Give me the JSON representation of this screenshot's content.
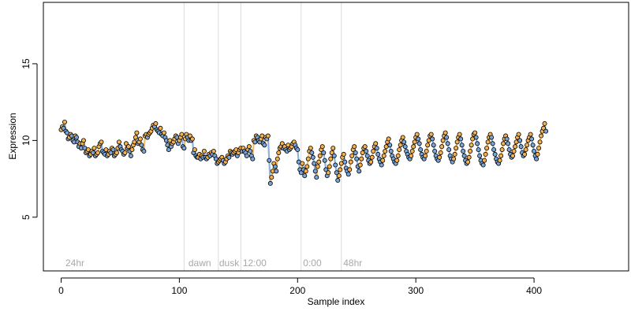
{
  "chart_data": {
    "type": "scatter",
    "xlabel": "Sample index",
    "ylabel": "Expression",
    "xlim": [
      -15,
      480
    ],
    "ylim": [
      1.5,
      19
    ],
    "x_ticks": [
      0,
      100,
      200,
      300,
      400
    ],
    "y_ticks": [
      5,
      10,
      15
    ],
    "grid": false,
    "colors": {
      "light": "#f5b14e",
      "dark": "#7aa4d6",
      "point_outline": "#000000",
      "divider": "#dcdcdc",
      "phase_label": "#a8a8a8"
    },
    "phase_markers": [
      {
        "x": 104,
        "label": ""
      },
      {
        "x": 133,
        "label": ""
      },
      {
        "x": 152,
        "label": ""
      },
      {
        "x": 203,
        "label": ""
      },
      {
        "x": 237,
        "label": ""
      }
    ],
    "phase_labels": [
      {
        "x": 3,
        "label": "24hr"
      },
      {
        "x": 107,
        "label": "dawn"
      },
      {
        "x": 133,
        "label": "dusk"
      },
      {
        "x": 153,
        "label": "12:00"
      },
      {
        "x": 204,
        "label": "0:00"
      },
      {
        "x": 238,
        "label": "48hr"
      }
    ],
    "series_legend": "none",
    "points_y": [
      10.7,
      10.9,
      10.8,
      11.2,
      10.6,
      10.5,
      10.1,
      10.2,
      10.4,
      10.3,
      10.0,
      9.9,
      10.3,
      10.2,
      9.9,
      9.6,
      9.8,
      9.5,
      9.8,
      10.0,
      9.5,
      9.2,
      9.3,
      9.4,
      9.0,
      9.1,
      9.3,
      9.2,
      9.5,
      9.0,
      9.1,
      9.2,
      9.6,
      9.8,
      9.9,
      9.3,
      9.2,
      9.1,
      9.4,
      9.0,
      9.1,
      9.3,
      9.2,
      9.5,
      9.4,
      9.0,
      9.1,
      9.2,
      9.5,
      9.9,
      9.6,
      9.4,
      9.3,
      9.1,
      9.2,
      9.8,
      9.5,
      9.6,
      9.3,
      9.0,
      9.4,
      9.7,
      9.9,
      10.2,
      10.5,
      9.8,
      9.9,
      10.1,
      9.7,
      9.4,
      9.3,
      10.3,
      10.4,
      10.2,
      10.4,
      10.5,
      10.6,
      10.8,
      11.0,
      10.9,
      11.1,
      10.7,
      10.6,
      10.5,
      10.8,
      10.4,
      10.3,
      10.5,
      10.2,
      10.0,
      9.7,
      9.4,
      10.0,
      9.6,
      9.8,
      9.9,
      10.1,
      10.3,
      10.2,
      9.8,
      10.0,
      10.2,
      10.4,
      9.6,
      9.5,
      10.1,
      10.4,
      10.2,
      10.0,
      10.3,
      10.0,
      10.1,
      9.2,
      9.4,
      9.0,
      8.9,
      8.9,
      9.1,
      8.8,
      9.0,
      8.9,
      9.3,
      8.9,
      8.8,
      8.9,
      9.1,
      9.0,
      9.2,
      9.1,
      9.3,
      9.0,
      8.8,
      8.5,
      8.6,
      8.7,
      8.8,
      8.9,
      8.7,
      8.5,
      8.6,
      8.8,
      9.0,
      8.9,
      9.3,
      9.2,
      9.1,
      9.2,
      9.3,
      9.4,
      9.0,
      9.2,
      9.4,
      9.5,
      9.3,
      9.5,
      9.3,
      9.2,
      9.0,
      9.4,
      9.6,
      9.3,
      9.0,
      8.8,
      10.0,
      9.9,
      10.3,
      10.2,
      10.0,
      9.9,
      10.1,
      10.3,
      9.8,
      9.7,
      10.2,
      10.1,
      10.3,
      8.7,
      7.2,
      7.6,
      8.0,
      8.5,
      8.3,
      8.0,
      8.8,
      9.2,
      9.5,
      9.6,
      9.8,
      9.5,
      9.6,
      9.4,
      9.3,
      9.7,
      9.4,
      9.5,
      9.6,
      9.8,
      9.9,
      9.7,
      9.5,
      9.4,
      8.6,
      8.1,
      7.9,
      8.5,
      8.1,
      7.7,
      8.0,
      8.3,
      8.8,
      9.3,
      9.5,
      9.2,
      8.9,
      8.5,
      8.0,
      7.6,
      8.3,
      8.6,
      9.0,
      9.4,
      9.6,
      9.2,
      8.7,
      8.1,
      7.7,
      7.9,
      8.3,
      8.8,
      9.2,
      9.5,
      9.0,
      8.4,
      7.9,
      7.4,
      7.7,
      8.1,
      8.5,
      8.9,
      9.1,
      8.6,
      8.2,
      8.0,
      7.8,
      8.1,
      8.6,
      9.0,
      9.4,
      9.6,
      9.2,
      8.8,
      8.3,
      8.0,
      8.4,
      8.8,
      9.2,
      9.5,
      9.6,
      9.3,
      9.0,
      8.7,
      8.5,
      8.6,
      8.9,
      9.3,
      9.6,
      9.8,
      9.5,
      9.1,
      8.8,
      8.6,
      8.4,
      8.7,
      9.0,
      9.3,
      9.6,
      9.9,
      10.1,
      9.7,
      9.3,
      9.0,
      8.8,
      8.6,
      8.5,
      8.7,
      9.0,
      9.4,
      9.7,
      10.0,
      10.2,
      9.9,
      9.6,
      9.3,
      9.1,
      8.9,
      8.8,
      9.0,
      9.3,
      9.6,
      9.9,
      10.2,
      10.4,
      10.1,
      9.8,
      9.4,
      9.1,
      8.9,
      8.8,
      9.0,
      9.3,
      9.7,
      10.0,
      10.3,
      10.4,
      10.1,
      9.7,
      9.3,
      9.0,
      8.8,
      8.7,
      8.9,
      9.2,
      9.6,
      10.0,
      10.3,
      10.5,
      10.2,
      9.8,
      9.4,
      9.0,
      8.8,
      8.6,
      8.8,
      9.1,
      9.5,
      9.9,
      10.2,
      10.4,
      10.1,
      9.7,
      9.3,
      9.0,
      8.7,
      8.5,
      8.6,
      8.9,
      9.3,
      9.7,
      10.1,
      10.4,
      10.5,
      10.2,
      9.8,
      9.4,
      9.0,
      8.7,
      8.5,
      8.4,
      8.7,
      9.1,
      9.5,
      9.9,
      10.2,
      10.4,
      10.2,
      9.8,
      9.4,
      9.1,
      8.8,
      8.6,
      8.5,
      8.7,
      9.0,
      9.4,
      9.8,
      10.1,
      10.3,
      10.1,
      9.8,
      9.4,
      9.1,
      8.9,
      9.0,
      9.3,
      9.6,
      9.9,
      10.2,
      10.4,
      10.0,
      9.6,
      9.2,
      9.0,
      9.1,
      9.4,
      9.7,
      10.0,
      10.2,
      10.4,
      10.1,
      9.7,
      9.3,
      9.0,
      8.8,
      9.1,
      9.5,
      9.9,
      10.3,
      10.6,
      10.8,
      11.1,
      10.6
    ]
  }
}
